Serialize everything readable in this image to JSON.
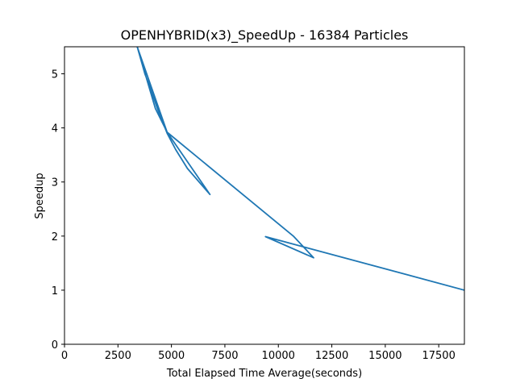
{
  "chart_data": {
    "type": "line",
    "title": "OPENHYBRID(x3)_SpeedUp - 16384 Particles",
    "xlabel": "Total Elapsed Time Average(seconds)",
    "ylabel": "Speedup",
    "xlim": [
      0,
      18700
    ],
    "ylim": [
      0,
      5.5
    ],
    "xticks": [
      0,
      2500,
      5000,
      7500,
      10000,
      12500,
      15000,
      17500
    ],
    "yticks": [
      0,
      1,
      2,
      3,
      4,
      5
    ],
    "grid": false,
    "line_color": "#1f77b4",
    "series": [
      {
        "name": "",
        "x": [
          3400,
          3760,
          4050,
          4350,
          4800,
          5200,
          5750,
          6800,
          4800,
          4250,
          3400,
          3400,
          4800,
          10700,
          11650,
          9400,
          18700
        ],
        "y": [
          5.5,
          5.0,
          4.7,
          4.35,
          3.9,
          3.6,
          3.25,
          2.77,
          3.92,
          4.36,
          5.5,
          5.5,
          3.92,
          2.0,
          1.6,
          1.99,
          1.0
        ]
      }
    ]
  }
}
